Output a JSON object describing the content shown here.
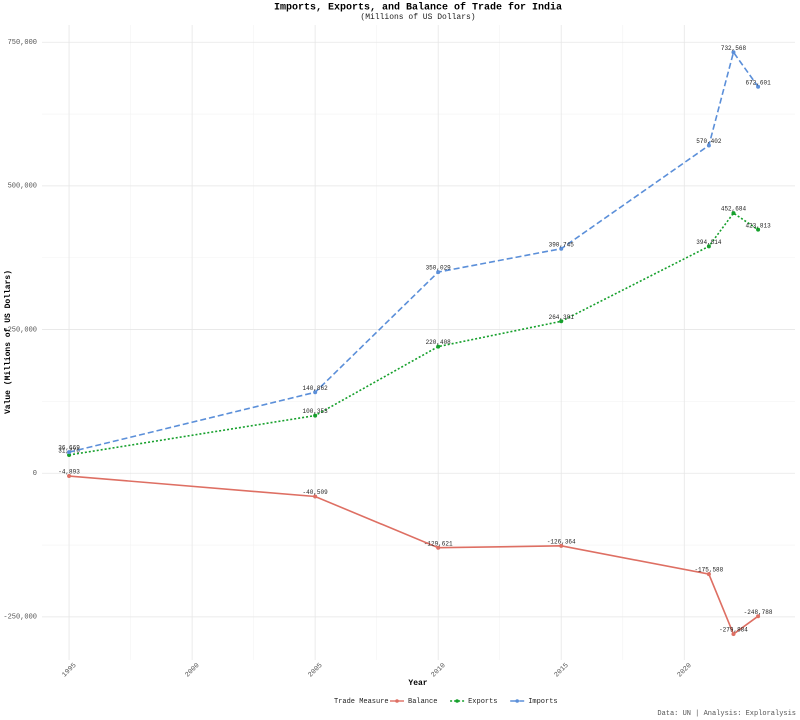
{
  "chart_data": {
    "type": "line",
    "title": "Imports, Exports, and Balance of Trade for India",
    "subtitle": "(Millions of US Dollars)",
    "x_label": "Year",
    "y_label": "Value (Millions of US Dollars)",
    "legend_title": "Trade Measure",
    "caption": "Data: UN | Analysis: Exploralysis",
    "x": [
      1995,
      2005,
      2010,
      2015,
      2021,
      2022,
      2023
    ],
    "series": [
      {
        "name": "Balance",
        "color": "#de6f63",
        "linestyle": "solid",
        "values": [
          -4893,
          -40509,
          -129621,
          -126364,
          -175588,
          -279884,
          -248788
        ],
        "value_labels": [
          "-4,893",
          "-40,509",
          "-129,621",
          "-126,364",
          "-175,588",
          "-279,884",
          "-248,788"
        ]
      },
      {
        "name": "Exports",
        "color": "#16a02c",
        "linestyle": "dotted",
        "values": [
          31776,
          100353,
          220408,
          264381,
          394814,
          452684,
          423813
        ],
        "value_labels": [
          "31,776",
          "100,353",
          "220,408",
          "264,381",
          "394,814",
          "452,684",
          "423,813"
        ]
      },
      {
        "name": "Imports",
        "color": "#5b8fd9",
        "linestyle": "dashed",
        "values": [
          36669,
          140862,
          350029,
          390745,
          570402,
          732568,
          672601
        ],
        "value_labels": [
          "36,669",
          "140,862",
          "350,029",
          "390,745",
          "570,402",
          "732,568",
          "672,601"
        ]
      }
    ],
    "xlim": [
      1993.9,
      2024.5
    ],
    "xticks": [
      1995,
      2000,
      2005,
      2010,
      2015,
      2020
    ],
    "ylim": [
      -325000,
      780000
    ],
    "yticks": [
      {
        "value": -250000,
        "label": "-250,000"
      },
      0,
      {
        "value": 250000,
        "label": "250,000"
      },
      {
        "value": 500000,
        "label": "500,000"
      },
      {
        "value": 750000,
        "label": "750,000"
      }
    ],
    "grid": true,
    "legend": "bottom"
  }
}
